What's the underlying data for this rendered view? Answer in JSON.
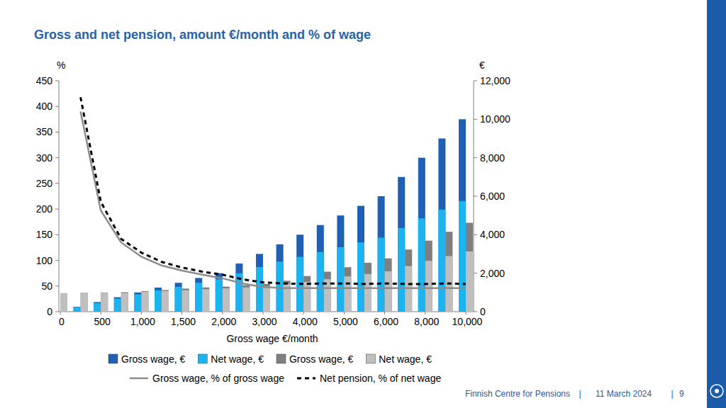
{
  "chart_data": {
    "type": "bar",
    "title": "Gross and net pension, amount €/month and % of wage",
    "x_label": "Gross wage €/month",
    "y_label": "%",
    "y2_label": "€",
    "categories": [
      "0",
      null,
      "500",
      null,
      "1,000",
      null,
      "1,500",
      null,
      "2,000",
      null,
      "3,000",
      null,
      "4,000",
      null,
      "5,000",
      null,
      "6,000",
      null,
      "8,000",
      null,
      "10,000"
    ],
    "ylim": [
      0,
      450
    ],
    "yticks": [
      0,
      50,
      100,
      150,
      200,
      250,
      300,
      350,
      400,
      450
    ],
    "y2lim": [
      0,
      12000
    ],
    "y2ticks": [
      0,
      {
        "value": 2000,
        "label": "2,000"
      },
      {
        "value": 4000,
        "label": "4,000"
      },
      {
        "value": 6000,
        "label": "6,000"
      },
      {
        "value": 8000,
        "label": "8,000"
      },
      {
        "value": 10000,
        "label": "10,000"
      },
      {
        "value": 12000,
        "label": "12,000"
      }
    ],
    "grid": false,
    "stacked": false,
    "legend": "bottom",
    "series": [
      {
        "name": "Gross wage, €",
        "type": "bar",
        "axis": "y2",
        "color": "#1f5fb4",
        "values": [
          0,
          250,
          500,
          750,
          1000,
          1250,
          1500,
          1750,
          2000,
          2500,
          3000,
          3500,
          4000,
          4500,
          5000,
          5500,
          6000,
          7000,
          8000,
          9000,
          10000
        ]
      },
      {
        "name": "Net wage, €",
        "type": "bar",
        "axis": "y2",
        "color": "#1cb4f0",
        "values": [
          0,
          230,
          450,
          680,
          900,
          1110,
          1290,
          1500,
          1680,
          2000,
          2320,
          2600,
          2850,
          3100,
          3350,
          3600,
          3850,
          4350,
          4850,
          5300,
          5750
        ]
      },
      {
        "name": "Gross wage, €",
        "type": "bar",
        "axis": "y2",
        "color": "#7f7f7f",
        "values": [
          960,
          975,
          985,
          1010,
          1070,
          1125,
          1200,
          1260,
          1300,
          1375,
          1440,
          1610,
          1850,
          2080,
          2310,
          2540,
          2770,
          3230,
          3690,
          4150,
          4620
        ]
      },
      {
        "name": "Net wage, €",
        "type": "bar",
        "axis": "y2",
        "color": "#bfbfbf",
        "values": [
          960,
          960,
          965,
          965,
          1035,
          1075,
          1110,
          1170,
          1210,
          1260,
          1320,
          1430,
          1550,
          1690,
          1830,
          1960,
          2100,
          2370,
          2640,
          2890,
          3130
        ]
      },
      {
        "name": "Gross wage, % of gross wage",
        "type": "line",
        "color": "#8c8c8c",
        "line_style": "solid",
        "values": [
          null,
          390,
          197,
          135,
          107,
          90,
          80,
          72,
          65,
          55,
          48,
          46,
          46,
          46,
          46,
          46,
          46,
          46,
          46,
          46,
          46
        ]
      },
      {
        "name": "Net pension, % of net wage",
        "type": "line",
        "color": "#000000",
        "line_style": "dashed",
        "values": [
          null,
          418,
          214,
          142,
          115,
          97,
          86,
          78,
          72,
          63,
          57,
          55,
          54,
          55,
          55,
          54,
          55,
          54,
          54,
          55,
          54
        ]
      }
    ]
  },
  "footer": {
    "organization": "Finnish Centre for Pensions",
    "separator": "|",
    "date": "11 March 2024",
    "page": "9"
  }
}
